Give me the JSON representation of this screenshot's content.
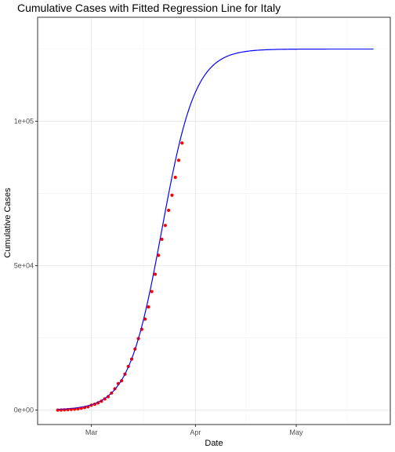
{
  "chart_data": {
    "type": "scatter",
    "title": "Cumulative Cases with Fitted Regression Line for Italy",
    "xlabel": "Date",
    "ylabel": "Cumulative Cases",
    "xlim": [
      "2020-02-14",
      "2020-05-29"
    ],
    "ylim": [
      -5000,
      136000
    ],
    "x_ticks": [
      {
        "date": "2020-03-01",
        "label": "Mar"
      },
      {
        "date": "2020-04-01",
        "label": "Apr"
      },
      {
        "date": "2020-05-01",
        "label": "May"
      }
    ],
    "y_ticks": [
      {
        "value": 0,
        "label": "0e+00"
      },
      {
        "value": 50000,
        "label": "5e+04"
      },
      {
        "value": 100000,
        "label": "1e+05"
      }
    ],
    "grid": true,
    "observed": {
      "marker_color": "#ff0000",
      "points": [
        {
          "date": "2020-02-20",
          "cases": 3
        },
        {
          "date": "2020-02-21",
          "cases": 20
        },
        {
          "date": "2020-02-22",
          "cases": 79
        },
        {
          "date": "2020-02-23",
          "cases": 150
        },
        {
          "date": "2020-02-24",
          "cases": 227
        },
        {
          "date": "2020-02-25",
          "cases": 320
        },
        {
          "date": "2020-02-26",
          "cases": 445
        },
        {
          "date": "2020-02-27",
          "cases": 650
        },
        {
          "date": "2020-02-28",
          "cases": 888
        },
        {
          "date": "2020-02-29",
          "cases": 1128
        },
        {
          "date": "2020-03-01",
          "cases": 1694
        },
        {
          "date": "2020-03-02",
          "cases": 2036
        },
        {
          "date": "2020-03-03",
          "cases": 2502
        },
        {
          "date": "2020-03-04",
          "cases": 3089
        },
        {
          "date": "2020-03-05",
          "cases": 3858
        },
        {
          "date": "2020-03-06",
          "cases": 4636
        },
        {
          "date": "2020-03-07",
          "cases": 5883
        },
        {
          "date": "2020-03-08",
          "cases": 7375
        },
        {
          "date": "2020-03-09",
          "cases": 9172
        },
        {
          "date": "2020-03-10",
          "cases": 10149
        },
        {
          "date": "2020-03-11",
          "cases": 12462
        },
        {
          "date": "2020-03-12",
          "cases": 15113
        },
        {
          "date": "2020-03-13",
          "cases": 17660
        },
        {
          "date": "2020-03-14",
          "cases": 21157
        },
        {
          "date": "2020-03-15",
          "cases": 24747
        },
        {
          "date": "2020-03-16",
          "cases": 27980
        },
        {
          "date": "2020-03-17",
          "cases": 31506
        },
        {
          "date": "2020-03-18",
          "cases": 35713
        },
        {
          "date": "2020-03-19",
          "cases": 41035
        },
        {
          "date": "2020-03-20",
          "cases": 47021
        },
        {
          "date": "2020-03-21",
          "cases": 53578
        },
        {
          "date": "2020-03-22",
          "cases": 59138
        },
        {
          "date": "2020-03-23",
          "cases": 63927
        },
        {
          "date": "2020-03-24",
          "cases": 69176
        },
        {
          "date": "2020-03-25",
          "cases": 74386
        },
        {
          "date": "2020-03-26",
          "cases": 80589
        },
        {
          "date": "2020-03-27",
          "cases": 86498
        },
        {
          "date": "2020-03-28",
          "cases": 92472
        }
      ]
    },
    "fitted": {
      "model": "logistic",
      "line_color": "#0000ff",
      "asymptote": 125000,
      "midpoint": "2020-03-22",
      "rate_per_day": 0.2,
      "start": "2020-02-20",
      "end": "2020-05-24"
    }
  }
}
